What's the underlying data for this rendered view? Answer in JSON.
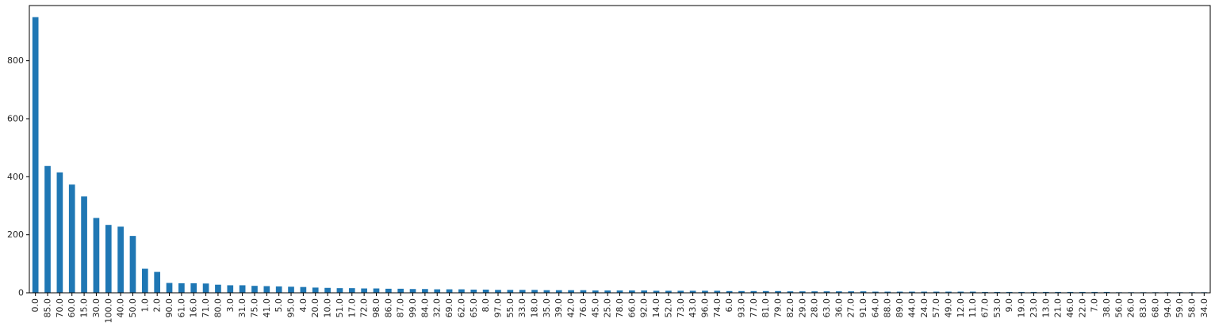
{
  "chart_data": {
    "type": "bar",
    "title": "",
    "xlabel": "",
    "ylabel": "",
    "ylim": [
      0,
      990
    ],
    "yticks": [
      0,
      200,
      400,
      600,
      800
    ],
    "bar_color": "#1f77b4",
    "grid": false,
    "categories": [
      "0.0",
      "85.0",
      "70.0",
      "60.0",
      "15.0",
      "30.0",
      "100.0",
      "40.0",
      "50.0",
      "1.0",
      "2.0",
      "90.0",
      "61.0",
      "16.0",
      "71.0",
      "80.0",
      "3.0",
      "31.0",
      "75.0",
      "41.0",
      "5.0",
      "95.0",
      "4.0",
      "20.0",
      "10.0",
      "51.0",
      "17.0",
      "72.0",
      "98.0",
      "86.0",
      "87.0",
      "99.0",
      "84.0",
      "32.0",
      "69.0",
      "62.0",
      "65.0",
      "8.0",
      "97.0",
      "55.0",
      "33.0",
      "18.0",
      "35.0",
      "39.0",
      "42.0",
      "76.0",
      "45.0",
      "25.0",
      "78.0",
      "66.0",
      "92.0",
      "14.0",
      "52.0",
      "73.0",
      "43.0",
      "96.0",
      "74.0",
      "6.0",
      "93.0",
      "77.0",
      "81.0",
      "79.0",
      "82.0",
      "29.0",
      "28.0",
      "63.0",
      "36.0",
      "27.0",
      "91.0",
      "64.0",
      "88.0",
      "89.0",
      "44.0",
      "24.0",
      "57.0",
      "49.0",
      "12.0",
      "11.0",
      "67.0",
      "53.0",
      "9.0",
      "19.0",
      "23.0",
      "13.0",
      "21.0",
      "46.0",
      "22.0",
      "7.0",
      "38.0",
      "56.0",
      "26.0",
      "83.0",
      "68.0",
      "94.0",
      "59.0",
      "58.0",
      "34.0"
    ],
    "values": [
      950,
      437,
      415,
      373,
      332,
      258,
      234,
      228,
      196,
      83,
      72,
      34,
      33,
      33,
      32,
      28,
      26,
      26,
      24,
      23,
      22,
      21,
      20,
      18,
      17,
      16,
      16,
      15,
      15,
      14,
      14,
      13,
      13,
      12,
      12,
      12,
      11,
      11,
      10,
      10,
      10,
      10,
      9,
      9,
      9,
      9,
      8,
      8,
      8,
      8,
      8,
      7,
      7,
      7,
      7,
      7,
      7,
      6,
      6,
      6,
      6,
      6,
      5,
      5,
      5,
      5,
      5,
      5,
      5,
      4,
      4,
      4,
      4,
      4,
      4,
      4,
      4,
      4,
      3,
      3,
      3,
      3,
      3,
      3,
      3,
      3,
      3,
      3,
      3,
      2,
      2,
      2,
      2,
      2,
      2,
      2,
      2
    ]
  }
}
